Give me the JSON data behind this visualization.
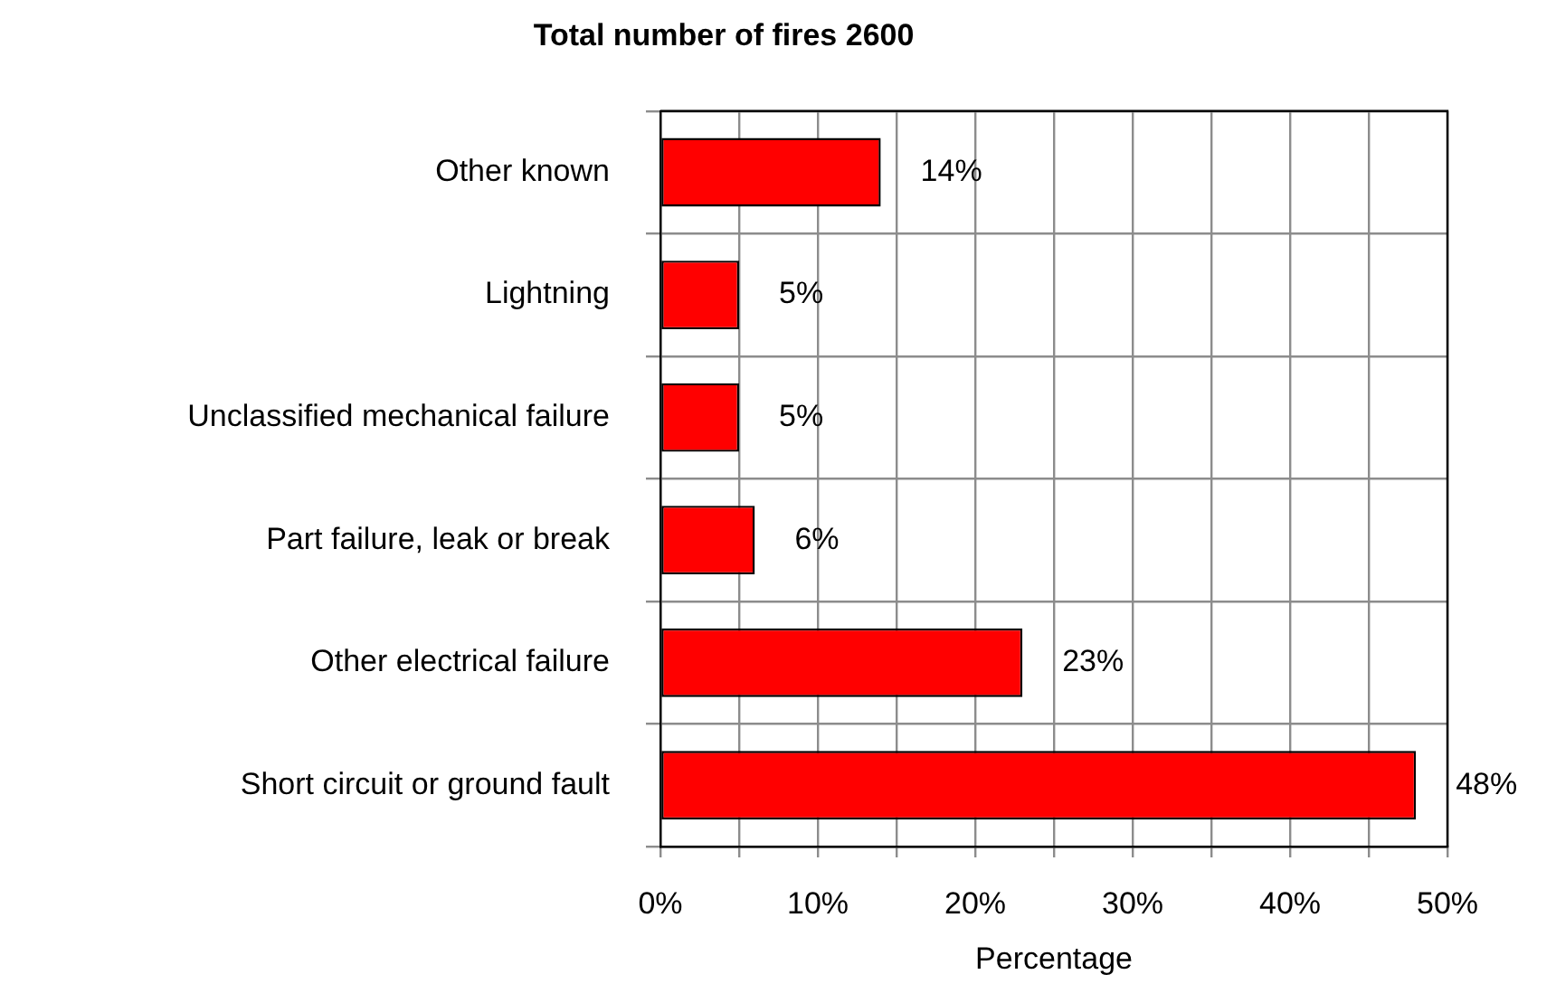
{
  "chart_data": {
    "type": "bar",
    "orientation": "horizontal",
    "title": "Total number of fires 2600",
    "xlabel": "Percentage",
    "categories": [
      "Other known",
      "Lightning",
      "Unclassified mechanical failure",
      "Part failure, leak or break",
      "Other electrical failure",
      "Short circuit or ground fault"
    ],
    "values": [
      14,
      5,
      5,
      6,
      23,
      48
    ],
    "value_labels": [
      "14%",
      "5%",
      "5%",
      "6%",
      "23%",
      "48%"
    ],
    "color": "#ff0000",
    "xlim": [
      0,
      50
    ],
    "xticks": [
      {
        "value": 0,
        "label": "0%"
      },
      {
        "value": 5,
        "label": null
      },
      {
        "value": 10,
        "label": "10%"
      },
      {
        "value": 15,
        "label": null
      },
      {
        "value": 20,
        "label": "20%"
      },
      {
        "value": 25,
        "label": null
      },
      {
        "value": 30,
        "label": "30%"
      },
      {
        "value": 35,
        "label": null
      },
      {
        "value": 40,
        "label": "40%"
      },
      {
        "value": 45,
        "label": null
      },
      {
        "value": 50,
        "label": "50%"
      }
    ],
    "grid": true
  }
}
